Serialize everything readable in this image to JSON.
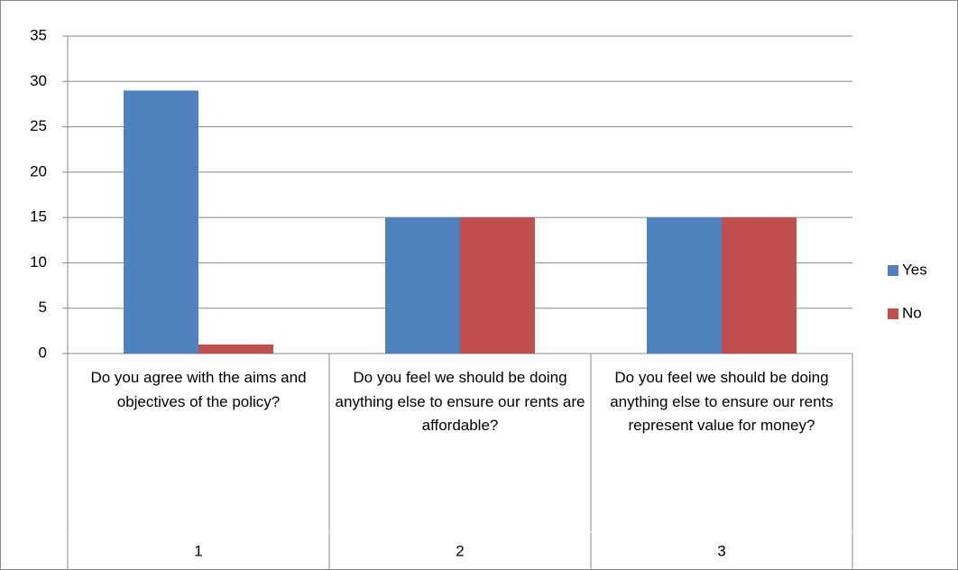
{
  "chart_data": {
    "type": "bar",
    "categories": [
      "Do you agree with the aims and objectives of the policy?",
      "Do you feel we should be doing anything else to ensure our rents are affordable?",
      "Do you feel we should be doing anything else to ensure our rents represent value for money?"
    ],
    "category_numbers": [
      "1",
      "2",
      "3"
    ],
    "series": [
      {
        "name": "Yes",
        "color": "#4f81bd",
        "values": [
          29,
          15,
          15
        ]
      },
      {
        "name": "No",
        "color": "#c0504d",
        "values": [
          1,
          15,
          15
        ]
      }
    ],
    "ylim": [
      0,
      35
    ],
    "yticks": [
      0,
      5,
      10,
      15,
      20,
      25,
      30,
      35
    ],
    "grid": true,
    "legend": "right"
  }
}
